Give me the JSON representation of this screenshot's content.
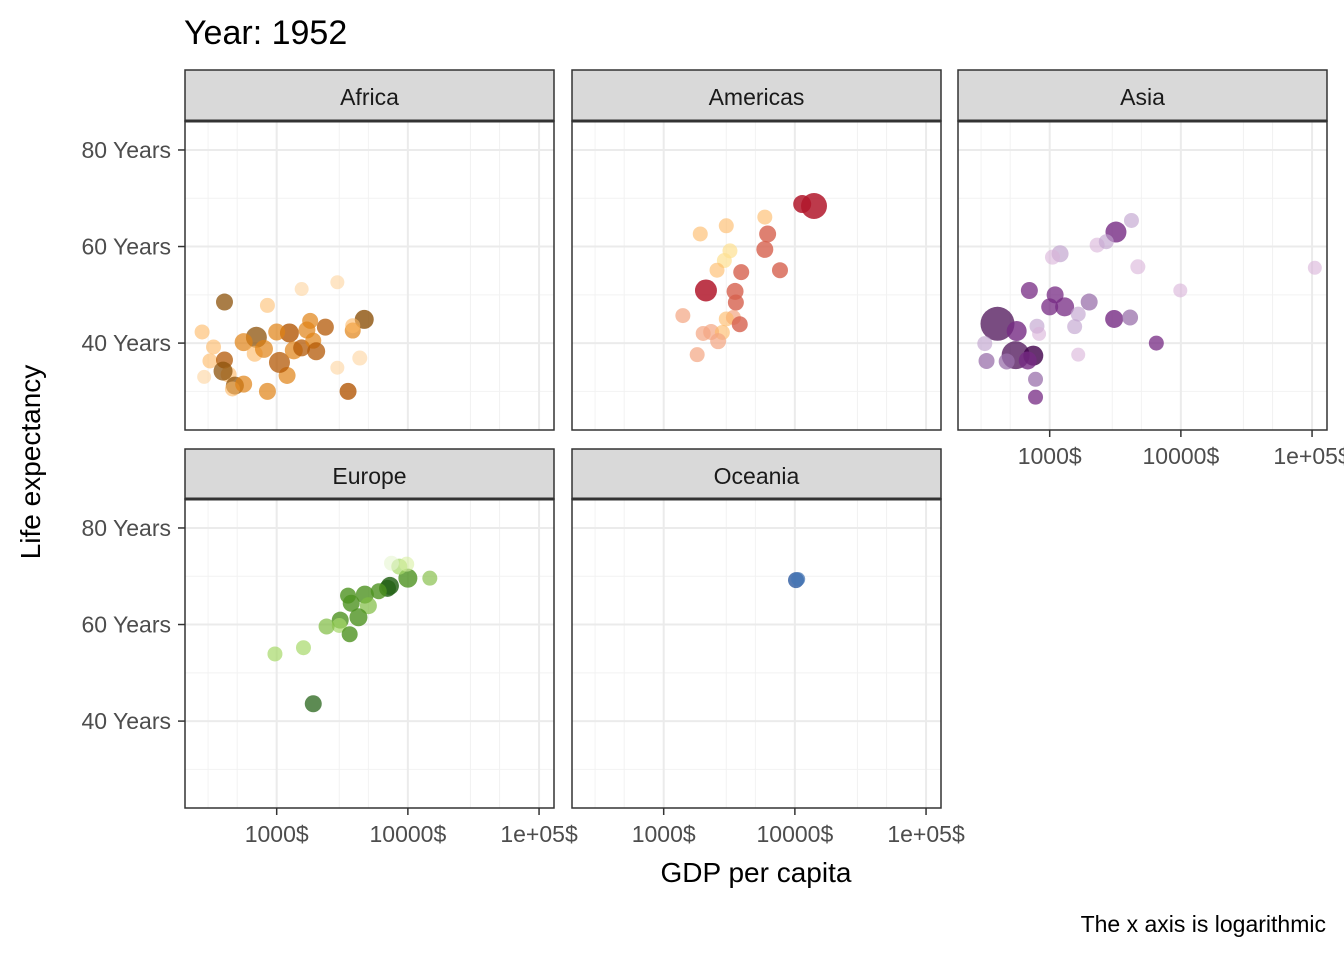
{
  "chart_data": {
    "type": "scatter",
    "title": "Year: 1952",
    "xlabel": "GDP per capita",
    "ylabel": "Life expectancy",
    "caption": "The x axis is logarithmic",
    "x_scale": "log10",
    "xlim": [
      200,
      130000
    ],
    "ylim": [
      22,
      86
    ],
    "x_ticks": [
      1000,
      10000,
      100000
    ],
    "x_tick_labels": [
      "1000$",
      "10000$",
      "1e+05$"
    ],
    "y_ticks": [
      40,
      60,
      80
    ],
    "y_tick_labels": [
      "40 Years",
      "60 Years",
      "80 Years"
    ],
    "grid": true,
    "legend": "none",
    "facets": [
      {
        "name": "Africa",
        "points": [
          {
            "x": 400,
            "y": 48.5,
            "size": 11,
            "color": "#8c510a",
            "opacity": 0.75
          },
          {
            "x": 850,
            "y": 47.8,
            "size": 9,
            "color": "#fdb863",
            "opacity": 0.55
          },
          {
            "x": 1550,
            "y": 51.2,
            "size": 8,
            "color": "#fdd49e",
            "opacity": 0.6
          },
          {
            "x": 2900,
            "y": 52.6,
            "size": 8,
            "color": "#fdd49e",
            "opacity": 0.6
          },
          {
            "x": 4650,
            "y": 44.9,
            "size": 13,
            "color": "#8c510a",
            "opacity": 0.8
          },
          {
            "x": 1800,
            "y": 44.6,
            "size": 10,
            "color": "#e08214",
            "opacity": 0.7
          },
          {
            "x": 2350,
            "y": 43.3,
            "size": 11,
            "color": "#b35806",
            "opacity": 0.75
          },
          {
            "x": 1250,
            "y": 42.1,
            "size": 13,
            "color": "#b35806",
            "opacity": 0.8
          },
          {
            "x": 1000,
            "y": 42.3,
            "size": 11,
            "color": "#e08214",
            "opacity": 0.7
          },
          {
            "x": 700,
            "y": 41.2,
            "size": 15,
            "color": "#8c510a",
            "opacity": 0.75
          },
          {
            "x": 560,
            "y": 40.2,
            "size": 12,
            "color": "#e08214",
            "opacity": 0.7
          },
          {
            "x": 270,
            "y": 42.3,
            "size": 9,
            "color": "#fdb863",
            "opacity": 0.6
          },
          {
            "x": 330,
            "y": 39.2,
            "size": 9,
            "color": "#fdb863",
            "opacity": 0.6
          },
          {
            "x": 310,
            "y": 36.3,
            "size": 9,
            "color": "#fdb863",
            "opacity": 0.6
          },
          {
            "x": 400,
            "y": 36.5,
            "size": 11,
            "color": "#b35806",
            "opacity": 0.75
          },
          {
            "x": 430,
            "y": 33.5,
            "size": 10,
            "color": "#fdb863",
            "opacity": 0.6
          },
          {
            "x": 480,
            "y": 31.2,
            "size": 12,
            "color": "#8c510a",
            "opacity": 0.75
          },
          {
            "x": 390,
            "y": 34.2,
            "size": 13,
            "color": "#8c510a",
            "opacity": 0.75
          },
          {
            "x": 280,
            "y": 33.0,
            "size": 8,
            "color": "#fdd49e",
            "opacity": 0.6
          },
          {
            "x": 460,
            "y": 30.5,
            "size": 9,
            "color": "#fdb863",
            "opacity": 0.6
          },
          {
            "x": 560,
            "y": 31.5,
            "size": 11,
            "color": "#e08214",
            "opacity": 0.7
          },
          {
            "x": 850,
            "y": 30.0,
            "size": 11,
            "color": "#e08214",
            "opacity": 0.7
          },
          {
            "x": 1200,
            "y": 33.3,
            "size": 11,
            "color": "#e08214",
            "opacity": 0.7
          },
          {
            "x": 1050,
            "y": 36.0,
            "size": 15,
            "color": "#b35806",
            "opacity": 0.75
          },
          {
            "x": 1350,
            "y": 38.5,
            "size": 12,
            "color": "#e08214",
            "opacity": 0.7
          },
          {
            "x": 680,
            "y": 37.8,
            "size": 10,
            "color": "#fdb863",
            "opacity": 0.6
          },
          {
            "x": 800,
            "y": 38.8,
            "size": 12,
            "color": "#e08214",
            "opacity": 0.7
          },
          {
            "x": 1550,
            "y": 39.0,
            "size": 11,
            "color": "#b35806",
            "opacity": 0.75
          },
          {
            "x": 1900,
            "y": 40.5,
            "size": 10,
            "color": "#e08214",
            "opacity": 0.7
          },
          {
            "x": 2000,
            "y": 38.3,
            "size": 12,
            "color": "#b35806",
            "opacity": 0.75
          },
          {
            "x": 1700,
            "y": 42.7,
            "size": 11,
            "color": "#e08214",
            "opacity": 0.7
          },
          {
            "x": 2900,
            "y": 34.9,
            "size": 8,
            "color": "#fdd49e",
            "opacity": 0.6
          },
          {
            "x": 3500,
            "y": 30.0,
            "size": 11,
            "color": "#b35806",
            "opacity": 0.8
          },
          {
            "x": 4300,
            "y": 36.9,
            "size": 9,
            "color": "#fdd49e",
            "opacity": 0.6
          },
          {
            "x": 3800,
            "y": 42.6,
            "size": 10,
            "color": "#e08214",
            "opacity": 0.7
          },
          {
            "x": 3800,
            "y": 43.6,
            "size": 9,
            "color": "#fdb863",
            "opacity": 0.6
          }
        ]
      },
      {
        "name": "Americas",
        "points": [
          {
            "x": 13990,
            "y": 68.4,
            "size": 20,
            "color": "#b2182b",
            "opacity": 0.85
          },
          {
            "x": 11370,
            "y": 68.8,
            "size": 12,
            "color": "#b2182b",
            "opacity": 0.85
          },
          {
            "x": 5900,
            "y": 66.1,
            "size": 9,
            "color": "#fdb863",
            "opacity": 0.6
          },
          {
            "x": 3000,
            "y": 64.3,
            "size": 9,
            "color": "#fdb863",
            "opacity": 0.6
          },
          {
            "x": 1900,
            "y": 62.6,
            "size": 9,
            "color": "#fdb863",
            "opacity": 0.6
          },
          {
            "x": 6200,
            "y": 62.6,
            "size": 11,
            "color": "#d6604d",
            "opacity": 0.8
          },
          {
            "x": 5900,
            "y": 59.4,
            "size": 11,
            "color": "#d6604d",
            "opacity": 0.8
          },
          {
            "x": 3200,
            "y": 59.1,
            "size": 9,
            "color": "#fee090",
            "opacity": 0.7
          },
          {
            "x": 2900,
            "y": 57.1,
            "size": 9,
            "color": "#fee090",
            "opacity": 0.7
          },
          {
            "x": 2550,
            "y": 55.1,
            "size": 9,
            "color": "#fdb863",
            "opacity": 0.6
          },
          {
            "x": 3900,
            "y": 54.7,
            "size": 10,
            "color": "#d6604d",
            "opacity": 0.8
          },
          {
            "x": 7700,
            "y": 55.1,
            "size": 10,
            "color": "#d6604d",
            "opacity": 0.8
          },
          {
            "x": 3500,
            "y": 50.7,
            "size": 11,
            "color": "#d6604d",
            "opacity": 0.8
          },
          {
            "x": 2100,
            "y": 50.9,
            "size": 16,
            "color": "#b2182b",
            "opacity": 0.85
          },
          {
            "x": 3550,
            "y": 48.4,
            "size": 10,
            "color": "#d6604d",
            "opacity": 0.8
          },
          {
            "x": 1400,
            "y": 45.7,
            "size": 9,
            "color": "#f4a582",
            "opacity": 0.7
          },
          {
            "x": 3400,
            "y": 45.3,
            "size": 9,
            "color": "#f4a582",
            "opacity": 0.7
          },
          {
            "x": 3000,
            "y": 45.0,
            "size": 9,
            "color": "#fdb863",
            "opacity": 0.6
          },
          {
            "x": 3800,
            "y": 43.9,
            "size": 10,
            "color": "#d6604d",
            "opacity": 0.8
          },
          {
            "x": 2300,
            "y": 42.3,
            "size": 10,
            "color": "#f4a582",
            "opacity": 0.7
          },
          {
            "x": 2000,
            "y": 42.0,
            "size": 9,
            "color": "#f4a582",
            "opacity": 0.7
          },
          {
            "x": 2800,
            "y": 42.2,
            "size": 9,
            "color": "#fdb863",
            "opacity": 0.6
          },
          {
            "x": 2600,
            "y": 40.4,
            "size": 10,
            "color": "#f4a582",
            "opacity": 0.7
          },
          {
            "x": 1800,
            "y": 37.6,
            "size": 9,
            "color": "#f4a582",
            "opacity": 0.7
          }
        ]
      },
      {
        "name": "Asia",
        "points": [
          {
            "x": 105000,
            "y": 55.6,
            "size": 8,
            "color": "#d8b2d8",
            "opacity": 0.6
          },
          {
            "x": 9900,
            "y": 50.9,
            "size": 8,
            "color": "#d8b2d8",
            "opacity": 0.6
          },
          {
            "x": 4200,
            "y": 65.4,
            "size": 9,
            "color": "#c2a5cf",
            "opacity": 0.65
          },
          {
            "x": 3200,
            "y": 63.0,
            "size": 15,
            "color": "#762a83",
            "opacity": 0.8
          },
          {
            "x": 2300,
            "y": 60.3,
            "size": 9,
            "color": "#d8b2d8",
            "opacity": 0.6
          },
          {
            "x": 2700,
            "y": 61.0,
            "size": 9,
            "color": "#c2a5cf",
            "opacity": 0.65
          },
          {
            "x": 1200,
            "y": 58.5,
            "size": 11,
            "color": "#c2a5cf",
            "opacity": 0.7
          },
          {
            "x": 1050,
            "y": 57.8,
            "size": 9,
            "color": "#d8b2d8",
            "opacity": 0.6
          },
          {
            "x": 4700,
            "y": 55.8,
            "size": 9,
            "color": "#d8b2d8",
            "opacity": 0.6
          },
          {
            "x": 700,
            "y": 50.9,
            "size": 11,
            "color": "#762a83",
            "opacity": 0.75
          },
          {
            "x": 1100,
            "y": 50.0,
            "size": 11,
            "color": "#762a83",
            "opacity": 0.75
          },
          {
            "x": 2000,
            "y": 48.5,
            "size": 11,
            "color": "#9970ab",
            "opacity": 0.75
          },
          {
            "x": 1000,
            "y": 47.5,
            "size": 11,
            "color": "#762a83",
            "opacity": 0.75
          },
          {
            "x": 1300,
            "y": 47.5,
            "size": 13,
            "color": "#762a83",
            "opacity": 0.75
          },
          {
            "x": 1650,
            "y": 46.0,
            "size": 9,
            "color": "#c2a5cf",
            "opacity": 0.65
          },
          {
            "x": 1550,
            "y": 43.4,
            "size": 9,
            "color": "#c2a5cf",
            "opacity": 0.65
          },
          {
            "x": 3100,
            "y": 45.0,
            "size": 12,
            "color": "#762a83",
            "opacity": 0.8
          },
          {
            "x": 4100,
            "y": 45.3,
            "size": 10,
            "color": "#9970ab",
            "opacity": 0.75
          },
          {
            "x": 800,
            "y": 43.5,
            "size": 9,
            "color": "#c2a5cf",
            "opacity": 0.65
          },
          {
            "x": 400,
            "y": 44.0,
            "size": 28,
            "color": "#40004b",
            "opacity": 0.7
          },
          {
            "x": 560,
            "y": 42.5,
            "size": 14,
            "color": "#762a83",
            "opacity": 0.8
          },
          {
            "x": 830,
            "y": 41.9,
            "size": 8,
            "color": "#d8b2d8",
            "opacity": 0.6
          },
          {
            "x": 550,
            "y": 37.5,
            "size": 22,
            "color": "#40004b",
            "opacity": 0.7
          },
          {
            "x": 750,
            "y": 37.4,
            "size": 14,
            "color": "#40004b",
            "opacity": 0.8
          },
          {
            "x": 320,
            "y": 39.9,
            "size": 9,
            "color": "#c2a5cf",
            "opacity": 0.65
          },
          {
            "x": 330,
            "y": 36.3,
            "size": 10,
            "color": "#9970ab",
            "opacity": 0.75
          },
          {
            "x": 470,
            "y": 36.2,
            "size": 10,
            "color": "#9970ab",
            "opacity": 0.75
          },
          {
            "x": 680,
            "y": 36.4,
            "size": 12,
            "color": "#762a83",
            "opacity": 0.8
          },
          {
            "x": 780,
            "y": 32.5,
            "size": 9,
            "color": "#9970ab",
            "opacity": 0.75
          },
          {
            "x": 780,
            "y": 28.8,
            "size": 9,
            "color": "#762a83",
            "opacity": 0.75
          },
          {
            "x": 1650,
            "y": 37.6,
            "size": 8,
            "color": "#d8b2d8",
            "opacity": 0.6
          },
          {
            "x": 6500,
            "y": 40.0,
            "size": 9,
            "color": "#762a83",
            "opacity": 0.75
          }
        ]
      },
      {
        "name": "Europe",
        "points": [
          {
            "x": 14700,
            "y": 69.6,
            "size": 9,
            "color": "#7fbc41",
            "opacity": 0.65
          },
          {
            "x": 10000,
            "y": 69.6,
            "size": 13,
            "color": "#4d9221",
            "opacity": 0.8
          },
          {
            "x": 8600,
            "y": 72.0,
            "size": 10,
            "color": "#a6d96a",
            "opacity": 0.7
          },
          {
            "x": 9800,
            "y": 72.5,
            "size": 9,
            "color": "#d9f0a3",
            "opacity": 0.6
          },
          {
            "x": 7500,
            "y": 72.7,
            "size": 9,
            "color": "#e6f5d0",
            "opacity": 0.6
          },
          {
            "x": 7000,
            "y": 67.5,
            "size": 11,
            "color": "#276419",
            "opacity": 0.85
          },
          {
            "x": 7300,
            "y": 68.0,
            "size": 12,
            "color": "#276419",
            "opacity": 0.85
          },
          {
            "x": 6000,
            "y": 66.9,
            "size": 10,
            "color": "#4d9221",
            "opacity": 0.8
          },
          {
            "x": 4700,
            "y": 66.2,
            "size": 12,
            "color": "#4d9221",
            "opacity": 0.8
          },
          {
            "x": 3500,
            "y": 66.0,
            "size": 10,
            "color": "#4d9221",
            "opacity": 0.8
          },
          {
            "x": 3700,
            "y": 64.4,
            "size": 11,
            "color": "#4d9221",
            "opacity": 0.8
          },
          {
            "x": 5000,
            "y": 63.9,
            "size": 11,
            "color": "#7fbc41",
            "opacity": 0.7
          },
          {
            "x": 4200,
            "y": 61.5,
            "size": 12,
            "color": "#4d9221",
            "opacity": 0.8
          },
          {
            "x": 3050,
            "y": 60.9,
            "size": 11,
            "color": "#4d9221",
            "opacity": 0.8
          },
          {
            "x": 3000,
            "y": 59.8,
            "size": 9,
            "color": "#a6d96a",
            "opacity": 0.7
          },
          {
            "x": 2400,
            "y": 59.6,
            "size": 10,
            "color": "#7fbc41",
            "opacity": 0.7
          },
          {
            "x": 3600,
            "y": 58.0,
            "size": 10,
            "color": "#4d9221",
            "opacity": 0.8
          },
          {
            "x": 1600,
            "y": 55.2,
            "size": 9,
            "color": "#a6d96a",
            "opacity": 0.7
          },
          {
            "x": 970,
            "y": 53.9,
            "size": 9,
            "color": "#a6d96a",
            "opacity": 0.7
          },
          {
            "x": 1900,
            "y": 43.6,
            "size": 11,
            "color": "#276419",
            "opacity": 0.75
          }
        ]
      },
      {
        "name": "Oceania",
        "points": [
          {
            "x": 10200,
            "y": 69.2,
            "size": 10,
            "color": "#2c5aa0",
            "opacity": 0.8
          },
          {
            "x": 10600,
            "y": 69.4,
            "size": 8,
            "color": "#4575b4",
            "opacity": 0.75
          }
        ]
      }
    ]
  }
}
